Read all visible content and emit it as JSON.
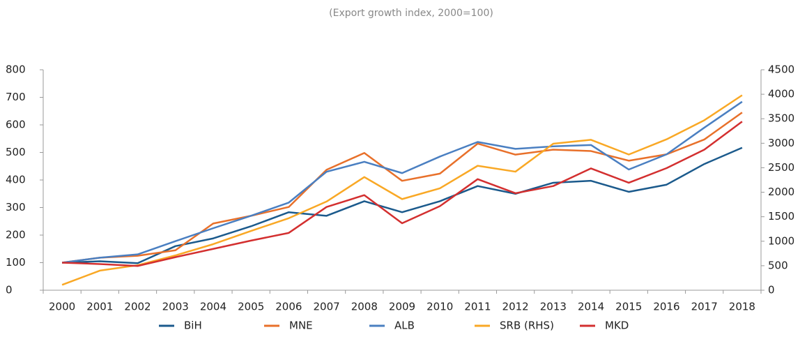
{
  "chart_data": {
    "type": "line",
    "subtitle": "(Export growth index, 2000=100)",
    "categories": [
      "2000",
      "2001",
      "2002",
      "2003",
      "2004",
      "2005",
      "2006",
      "2007",
      "2008",
      "2009",
      "2010",
      "2011",
      "2012",
      "2013",
      "2014",
      "2015",
      "2016",
      "2017",
      "2018"
    ],
    "series": [
      {
        "name": "BiH",
        "color": "#1b5a8c",
        "values": [
          100,
          105,
          98,
          160,
          188,
          232,
          283,
          270,
          323,
          283,
          323,
          378,
          350,
          390,
          397,
          357,
          383,
          458,
          517
        ]
      },
      {
        "name": "MNE",
        "color": "#e8702a",
        "values": [
          100,
          118,
          125,
          145,
          242,
          270,
          302,
          437,
          498,
          397,
          423,
          532,
          492,
          510,
          505,
          470,
          493,
          547,
          645
        ]
      },
      {
        "name": "ALB",
        "color": "#4a7fc1",
        "values": [
          100,
          118,
          130,
          178,
          225,
          270,
          318,
          430,
          466,
          425,
          485,
          538,
          513,
          522,
          527,
          438,
          493,
          590,
          684
        ]
      },
      {
        "name": "SRB (RHS)",
        "color": "#f9a825",
        "axis": "y2",
        "values": [
          110,
          400,
          510,
          710,
          940,
          1210,
          1470,
          1810,
          2310,
          1860,
          2080,
          2540,
          2420,
          2990,
          3070,
          2770,
          3080,
          3470,
          3980
        ]
      },
      {
        "name": "MKD",
        "color": "#d32f2f",
        "values": [
          100,
          95,
          88,
          120,
          150,
          180,
          208,
          302,
          345,
          243,
          305,
          403,
          352,
          378,
          442,
          390,
          443,
          510,
          612
        ]
      }
    ],
    "ylim": [
      0,
      800
    ],
    "yticks": [
      0,
      100,
      200,
      300,
      400,
      500,
      600,
      700,
      800
    ],
    "y2lim": [
      0,
      4500
    ],
    "y2ticks": [
      0,
      500,
      1000,
      1500,
      2000,
      2500,
      3000,
      3500,
      4000,
      4500
    ],
    "legend": "bottom"
  }
}
